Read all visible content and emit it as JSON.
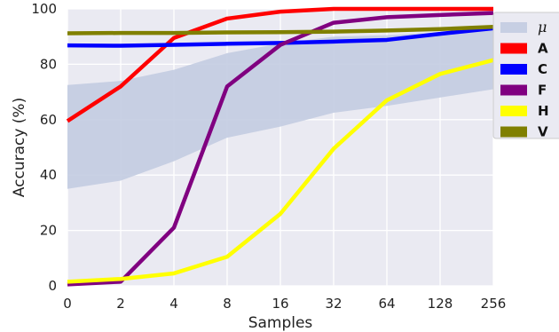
{
  "chart_data": {
    "type": "line",
    "xlabel": "Samples",
    "ylabel": "Accuracy (%)",
    "x": [
      "0",
      "2",
      "4",
      "8",
      "16",
      "32",
      "64",
      "128",
      "256"
    ],
    "y_ticks": [
      "0",
      "20",
      "40",
      "60",
      "80",
      "100"
    ],
    "ylim": [
      0,
      100
    ],
    "grid": true,
    "legend_position": "top-right",
    "band": {
      "name": "μ",
      "color": "#c3cce1",
      "lower": [
        35,
        38,
        45,
        53.5,
        57.5,
        62.5,
        65,
        68,
        71
      ],
      "upper": [
        72.5,
        74,
        78,
        84,
        87.5,
        90,
        90.5,
        91.5,
        93
      ]
    },
    "series": [
      {
        "name": "A",
        "color": "#ff0000",
        "values": [
          59.5,
          72,
          89.5,
          96.5,
          99,
          100,
          100,
          100,
          100
        ]
      },
      {
        "name": "C",
        "color": "#0000ff",
        "values": [
          86.8,
          86.7,
          87,
          87.4,
          87.7,
          88.2,
          88.8,
          91,
          93
        ]
      },
      {
        "name": "F",
        "color": "#800080",
        "values": [
          0.5,
          1.5,
          21,
          72,
          87,
          95,
          97,
          97.8,
          98.5
        ]
      },
      {
        "name": "H",
        "color": "#ffff00",
        "values": [
          1.5,
          2.5,
          4.5,
          10.5,
          26,
          49.5,
          67,
          76.5,
          81.5
        ]
      },
      {
        "name": "V",
        "color": "#808000",
        "values": [
          91.2,
          91.3,
          91.3,
          91.5,
          91.6,
          91.8,
          92.2,
          92.7,
          93.5
        ]
      }
    ]
  }
}
